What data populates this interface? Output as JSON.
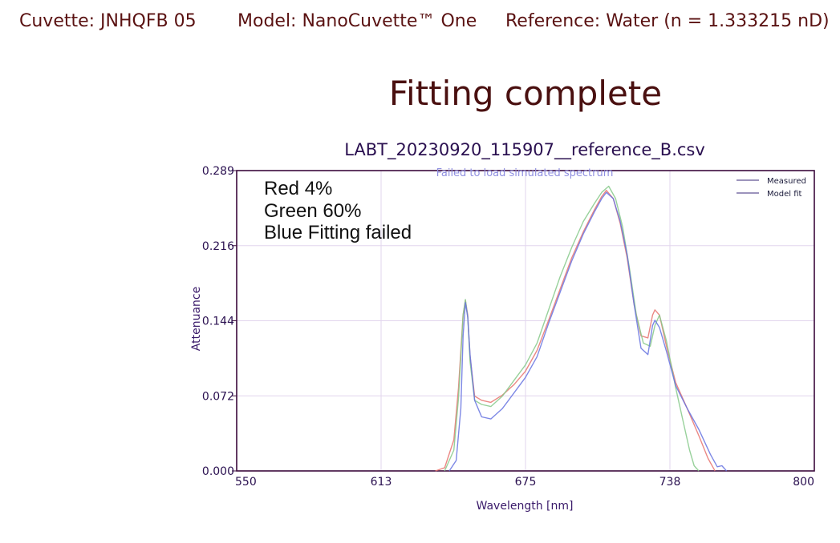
{
  "header": {
    "cuvette": "Cuvette: JNHQFB 05",
    "model": "Model: NanoCuvette™ One",
    "reference": "Reference: Water (n = 1.333215 nD)"
  },
  "status": "Fitting complete",
  "chart_data": {
    "type": "line",
    "title": "LABT_20230920_115907__reference_B.csv",
    "warning": "Failed to load simulated spectrum",
    "xlabel": "Wavelength [nm]",
    "ylabel": "Attenuance",
    "xlim": [
      550,
      800
    ],
    "ylim": [
      0,
      0.289
    ],
    "xticks": [
      "550",
      "613",
      "675",
      "738",
      "800"
    ],
    "yticks": [
      "0.000",
      "0.072",
      "0.144",
      "0.216",
      "0.289"
    ],
    "grid": true,
    "legend": {
      "placement": "top-right",
      "entries": [
        "Measured",
        "Model fit"
      ]
    },
    "annotation": [
      "Red 4%",
      "Green 60%",
      "Blue Fitting failed"
    ],
    "colors": {
      "red": "#e8736e",
      "green": "#86c98a",
      "blue": "#6673e0",
      "legend": "#3a2a78"
    },
    "series": [
      {
        "color": "red",
        "x": [
          636,
          640,
          644,
          646,
          648,
          649,
          650,
          651,
          653,
          656,
          660,
          665,
          670,
          675,
          680,
          685,
          690,
          695,
          700,
          705,
          708,
          710,
          713,
          716,
          719,
          722,
          725,
          728,
          730,
          731,
          733,
          736,
          740,
          745,
          750,
          754,
          757
        ],
        "y": [
          0.0,
          0.003,
          0.03,
          0.08,
          0.15,
          0.164,
          0.15,
          0.11,
          0.072,
          0.068,
          0.066,
          0.073,
          0.083,
          0.096,
          0.116,
          0.145,
          0.175,
          0.205,
          0.23,
          0.252,
          0.264,
          0.27,
          0.262,
          0.238,
          0.205,
          0.16,
          0.13,
          0.128,
          0.15,
          0.155,
          0.15,
          0.12,
          0.085,
          0.06,
          0.034,
          0.012,
          0.0
        ]
      },
      {
        "color": "green",
        "x": [
          640,
          644,
          646,
          648,
          649,
          650,
          651,
          653,
          656,
          660,
          665,
          670,
          675,
          680,
          685,
          690,
          695,
          700,
          705,
          708,
          711,
          714,
          717,
          720,
          723,
          726,
          729,
          731,
          733,
          736,
          740,
          743,
          746,
          748,
          750
        ],
        "y": [
          0.0,
          0.02,
          0.07,
          0.15,
          0.165,
          0.148,
          0.105,
          0.068,
          0.064,
          0.062,
          0.072,
          0.087,
          0.102,
          0.123,
          0.155,
          0.187,
          0.215,
          0.24,
          0.258,
          0.268,
          0.274,
          0.262,
          0.235,
          0.195,
          0.15,
          0.123,
          0.12,
          0.14,
          0.15,
          0.125,
          0.08,
          0.05,
          0.02,
          0.005,
          0.0
        ]
      },
      {
        "color": "blue",
        "x": [
          642,
          645,
          647,
          648,
          649,
          650,
          651,
          653,
          656,
          660,
          665,
          670,
          675,
          680,
          685,
          690,
          695,
          700,
          705,
          708,
          710,
          713,
          716,
          719,
          722,
          725,
          728,
          730,
          731,
          733,
          736,
          740,
          745,
          750,
          755,
          758,
          760,
          762
        ],
        "y": [
          0.0,
          0.01,
          0.06,
          0.13,
          0.162,
          0.148,
          0.112,
          0.068,
          0.052,
          0.05,
          0.06,
          0.075,
          0.09,
          0.11,
          0.142,
          0.172,
          0.202,
          0.228,
          0.25,
          0.262,
          0.268,
          0.262,
          0.24,
          0.208,
          0.16,
          0.118,
          0.112,
          0.14,
          0.145,
          0.138,
          0.115,
          0.082,
          0.06,
          0.04,
          0.016,
          0.004,
          0.005,
          0.0
        ]
      }
    ]
  }
}
